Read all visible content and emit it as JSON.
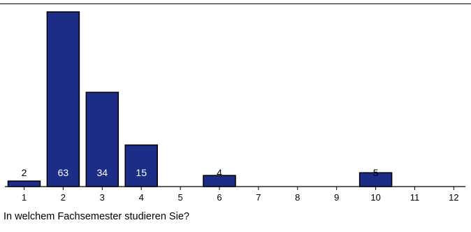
{
  "colors": {
    "bar_fill": "#1b2d86",
    "bar_stroke": "#000000",
    "label_inside": "#ffffff",
    "label_outside": "#000000"
  },
  "chart_data": {
    "type": "bar",
    "title": "In welchem Fachsemester studieren Sie?",
    "xlabel": "",
    "ylabel": "",
    "categories": [
      "1",
      "2",
      "3",
      "4",
      "5",
      "6",
      "7",
      "8",
      "9",
      "10",
      "11",
      "12"
    ],
    "values": [
      2,
      63,
      34,
      15,
      0,
      4,
      0,
      0,
      0,
      5,
      0,
      0
    ],
    "data_labels": [
      "2",
      "63",
      "34",
      "15",
      "",
      "4",
      "",
      "",
      "",
      "5",
      "",
      ""
    ],
    "ylim": [
      0,
      63
    ],
    "grid": false,
    "legend": "none"
  }
}
